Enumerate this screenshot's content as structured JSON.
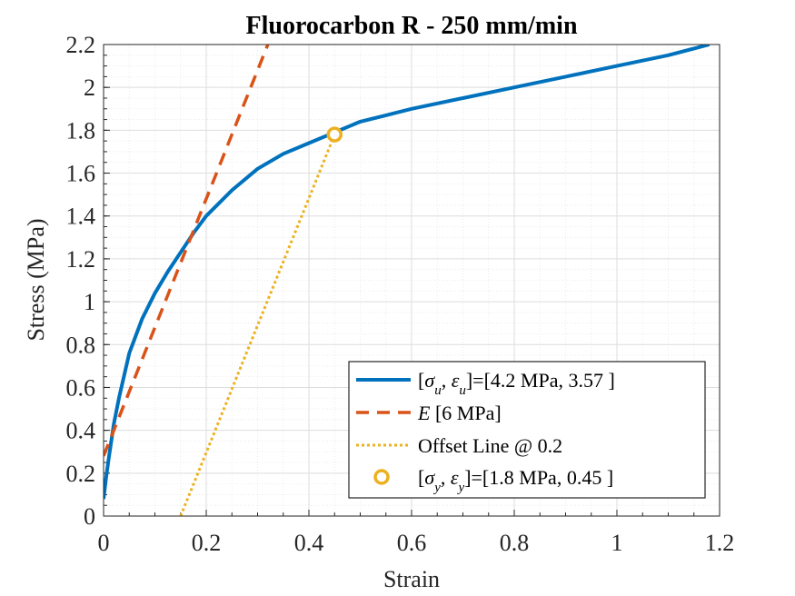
{
  "chart_data": {
    "type": "line",
    "title": "Fluorocarbon R - 250 mm/min",
    "xlabel": "Strain",
    "ylabel": "Stress (MPa)",
    "xlim": [
      0,
      1.2
    ],
    "ylim": [
      0,
      2.2
    ],
    "xticks": [
      "0",
      "0.2",
      "0.4",
      "0.6",
      "0.8",
      "1",
      "1.2"
    ],
    "yticks": [
      "0",
      "0.2",
      "0.4",
      "0.6",
      "0.8",
      "1",
      "1.2",
      "1.4",
      "1.6",
      "1.8",
      "2",
      "2.2"
    ],
    "grid": true,
    "minor_grid": true,
    "legend_position": "bottom-right",
    "series": [
      {
        "name": "[σu, εu]=[4.2 MPa, 3.57 ]",
        "style": "solid",
        "color": "#0072BD",
        "x": [
          0,
          0.005,
          0.01,
          0.02,
          0.03,
          0.05,
          0.075,
          0.1,
          0.125,
          0.15,
          0.175,
          0.2,
          0.25,
          0.3,
          0.35,
          0.4,
          0.45,
          0.5,
          0.55,
          0.6,
          0.7,
          0.8,
          0.9,
          1.0,
          1.1,
          1.18
        ],
        "y": [
          0.08,
          0.18,
          0.27,
          0.43,
          0.55,
          0.76,
          0.92,
          1.04,
          1.14,
          1.23,
          1.32,
          1.4,
          1.52,
          1.62,
          1.69,
          1.74,
          1.79,
          1.84,
          1.87,
          1.9,
          1.95,
          2.0,
          2.05,
          2.1,
          2.15,
          2.2
        ]
      },
      {
        "name": "E [6 MPa]",
        "style": "dashed",
        "color": "#D95319",
        "x": [
          0,
          0.32
        ],
        "y": [
          0.28,
          2.2
        ]
      },
      {
        "name": "Offset Line @ 0.2",
        "style": "dotted",
        "color": "#EDB120",
        "x": [
          0.15,
          0.45
        ],
        "y": [
          0,
          1.78
        ]
      },
      {
        "name": "[σy, εy]=[1.8 MPa, 0.45 ]",
        "style": "marker",
        "color": "#EDB120",
        "x": [
          0.45
        ],
        "y": [
          1.78
        ]
      }
    ],
    "legend": [
      {
        "pre": "[",
        "sym1": "σ",
        "sub1": "u",
        "mid": ", ",
        "sym2": "ε",
        "sub2": "u",
        "post": "]=[4.2 MPa, 3.57 ]"
      },
      {
        "sym": "E",
        "post": " [6 MPa]"
      },
      {
        "text": "Offset Line @ 0.2"
      },
      {
        "pre": "[",
        "sym1": "σ",
        "sub1": "y",
        "mid": ", ",
        "sym2": "ε",
        "sub2": "y",
        "post": "]=[1.8 MPa, 0.45 ]"
      }
    ]
  }
}
